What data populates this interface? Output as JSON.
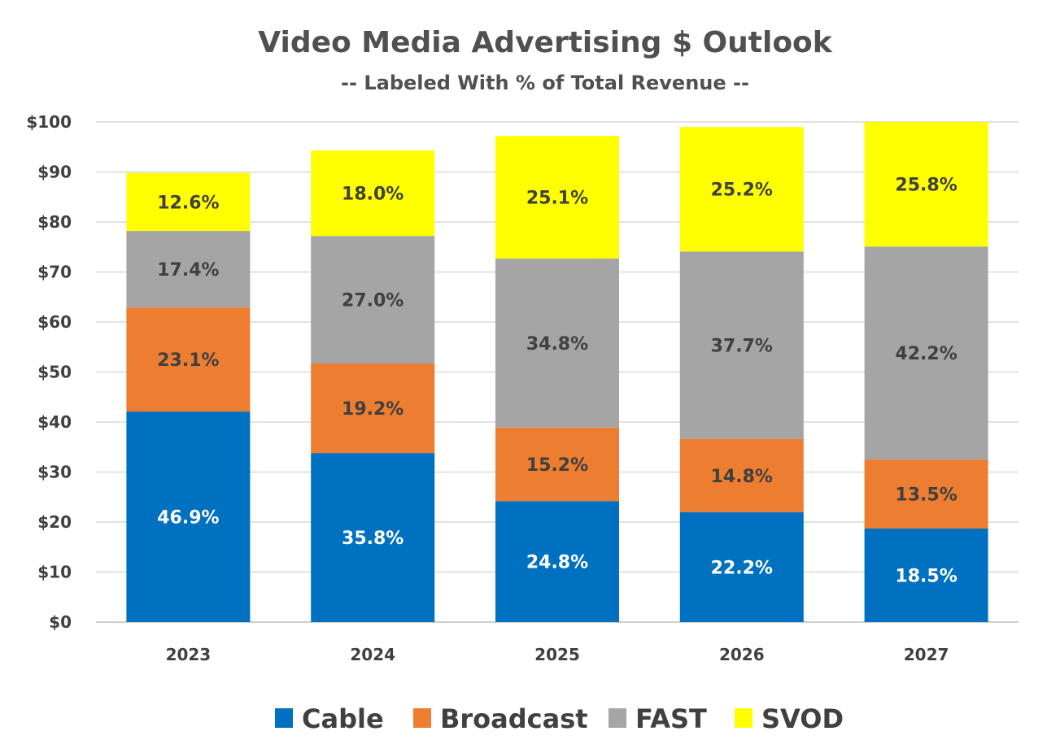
{
  "chart_data": {
    "type": "bar",
    "stacked": true,
    "title": "Video Media Advertising $ Outlook",
    "subtitle": "-- Labeled With % of Total Revenue --",
    "xlabel": "",
    "ylabel": "",
    "categories": [
      "2023",
      "2024",
      "2025",
      "2026",
      "2027"
    ],
    "ylim": [
      0,
      100
    ],
    "yticks": [
      0,
      10,
      20,
      30,
      40,
      50,
      60,
      70,
      80,
      90,
      100
    ],
    "ytick_labels": [
      "$0",
      "$10",
      "$20",
      "$30",
      "$40",
      "$50",
      "$60",
      "$70",
      "$80",
      "$90",
      "$100"
    ],
    "grid": true,
    "legend_position": "bottom",
    "series": [
      {
        "name": "Cable",
        "color": "#0070C0",
        "label_color": "#FFFFFF",
        "values": [
          42.1,
          33.8,
          24.2,
          22.0,
          18.7
        ],
        "labels": [
          "46.9%",
          "35.8%",
          "24.8%",
          "22.2%",
          "18.5%"
        ]
      },
      {
        "name": "Broadcast",
        "color": "#ED7D31",
        "label_color": "#404040",
        "values": [
          20.8,
          17.9,
          14.7,
          14.6,
          13.8
        ],
        "labels": [
          "23.1%",
          "19.2%",
          "15.2%",
          "14.8%",
          "13.5%"
        ]
      },
      {
        "name": "FAST",
        "color": "#A5A5A5",
        "label_color": "#404040",
        "values": [
          15.3,
          25.5,
          33.8,
          37.5,
          42.6
        ],
        "labels": [
          "17.4%",
          "27.0%",
          "34.8%",
          "37.7%",
          "42.2%"
        ]
      },
      {
        "name": "SVOD",
        "color": "#FFFF00",
        "label_color": "#404040",
        "values": [
          11.6,
          17.1,
          24.5,
          24.9,
          24.9
        ],
        "labels": [
          "12.6%",
          "18.0%",
          "25.1%",
          "25.2%",
          "25.8%"
        ]
      }
    ]
  }
}
